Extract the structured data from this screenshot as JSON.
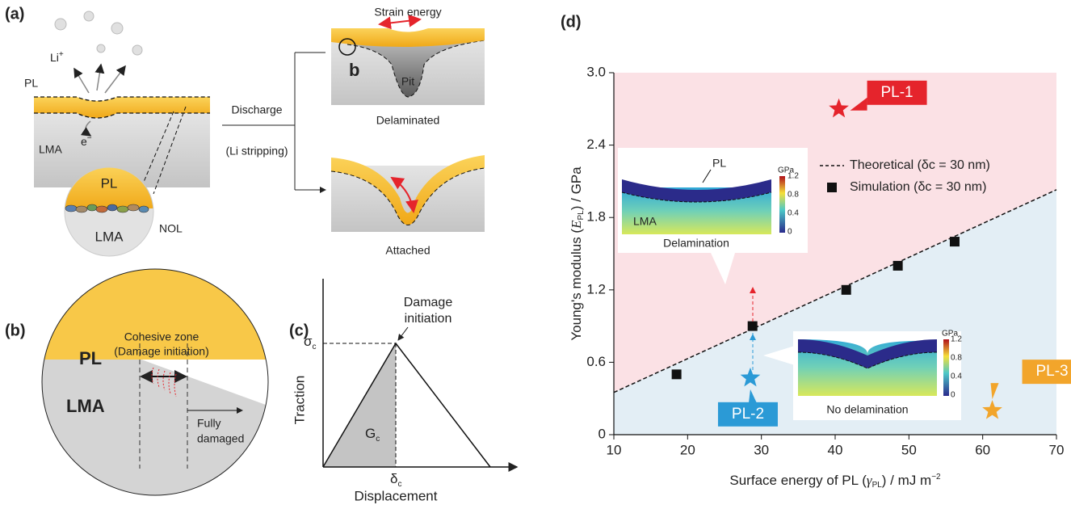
{
  "panel_a": {
    "label": "(a)",
    "pl": "PL",
    "li": "Li",
    "li_sup": "+",
    "e": "e",
    "e_sup": "−",
    "lma": "LMA",
    "zoom_pl": "PL",
    "zoom_lma": "LMA",
    "nol": "NOL",
    "discharge": "Discharge",
    "stripping": "(Li stripping)",
    "strain": "Strain energy",
    "b": "b",
    "pit": "Pit",
    "delaminated": "Delaminated",
    "attached": "Attached"
  },
  "panel_b": {
    "label": "(b)",
    "zone1": "Cohesive zone",
    "zone2": "(Damage initiation)",
    "pl": "PL",
    "lma": "LMA",
    "fully1": "Fully",
    "fully2": "damaged"
  },
  "panel_c": {
    "label": "(c)",
    "damage1": "Damage",
    "damage2": "initiation",
    "sigma": "σ",
    "sigma_sub": "c",
    "traction": "Traction",
    "g": "G",
    "g_sub": "c",
    "delta": "δ",
    "delta_sub": "c",
    "displacement": "Displacement"
  },
  "panel_d_label": "(d)",
  "insets": [
    {
      "top_label": "PL",
      "bottom_label": "LMA",
      "title": "Delamination",
      "unit": "GPa",
      "colorbar": [
        "1.2",
        "0.8",
        "0.4",
        "0"
      ]
    },
    {
      "title": "No delamination",
      "unit": "GPa",
      "colorbar": [
        "1.2",
        "0.8",
        "0.4",
        "0"
      ]
    }
  ],
  "chart_data": {
    "type": "scatter",
    "xlabel": [
      "Surface energy of PL (",
      "γ",
      "PL",
      ") / mJ m",
      "−2"
    ],
    "ylabel": [
      "Young's modulus (",
      "E",
      "PL",
      ") / GPa"
    ],
    "xlim": [
      10,
      70
    ],
    "xticks": [
      10,
      20,
      30,
      40,
      50,
      60,
      70
    ],
    "ylim": [
      0,
      3
    ],
    "yticks": [
      0,
      0.6,
      1.2,
      1.8,
      2.4,
      {
        "value": 3,
        "label": "3.0"
      }
    ],
    "region_colors": {
      "above": "#fbe1e5",
      "below": "#e3eef5"
    },
    "series": [
      {
        "name": "Theoretical (δc = 30 nm)",
        "type": "line",
        "color": "#111111",
        "x": [
          10,
          70
        ],
        "values": [
          0.35,
          2.03
        ]
      },
      {
        "name": "Simulation (δc = 30 nm)",
        "type": "scatter",
        "color": "#111111",
        "x": [
          18.5,
          28.8,
          41.5,
          48.5,
          56.2
        ],
        "values": [
          0.5,
          0.9,
          1.2,
          1.4,
          1.6
        ]
      }
    ],
    "annotations": [
      {
        "text": "PL-1",
        "x": 40.5,
        "y": 2.7,
        "color": "#e5242c"
      },
      {
        "text": "PL-2",
        "x": 28.5,
        "y": 0.47,
        "color": "#2b9ad6"
      },
      {
        "text": "PL-3",
        "x": 61.3,
        "y": 0.2,
        "color": "#f2a52b"
      }
    ]
  }
}
